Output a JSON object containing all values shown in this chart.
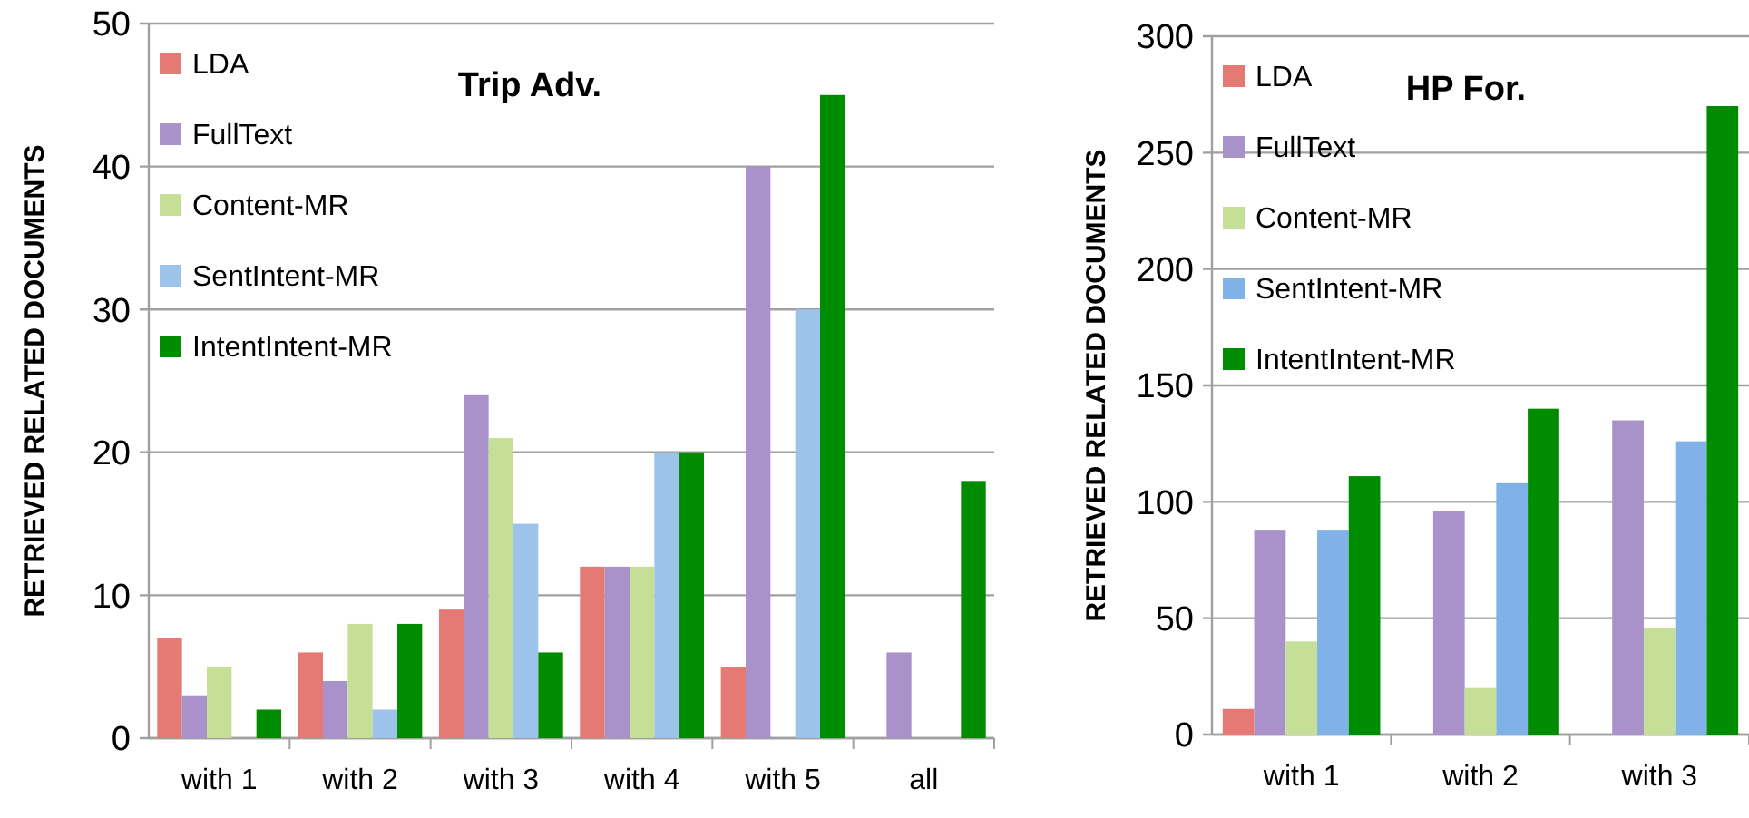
{
  "chart_data": [
    {
      "type": "bar",
      "title": "Trip Adv.",
      "ylabel": "RETRIEVED RELATED DOCUMENTS",
      "categories": [
        "with 1",
        "with 2",
        "with 3",
        "with 4",
        "with 5",
        "all"
      ],
      "series": [
        {
          "name": "LDA",
          "color": "#e57a74",
          "values": [
            7,
            6,
            9,
            12,
            5,
            0
          ]
        },
        {
          "name": "FullText",
          "color": "#a892c9",
          "values": [
            3,
            4,
            24,
            12,
            40,
            6
          ]
        },
        {
          "name": "Content-MR",
          "color": "#c6df96",
          "values": [
            5,
            8,
            21,
            12,
            0,
            0
          ]
        },
        {
          "name": "SentIntent-MR",
          "color": "#9dc3ea",
          "values": [
            0,
            2,
            15,
            20,
            30,
            0
          ]
        },
        {
          "name": "IntentIntent-MR",
          "color": "#008c00",
          "values": [
            2,
            8,
            6,
            20,
            45,
            18
          ]
        }
      ],
      "ylim": [
        0,
        50
      ],
      "yticks": [
        0,
        10,
        20,
        30,
        40,
        50
      ],
      "grid": "y",
      "legend": "top left"
    },
    {
      "type": "bar",
      "title": "HP For.",
      "ylabel": "RETRIEVED RELATED DOCUMENTS",
      "categories": [
        "with 1",
        "with 2",
        "with 3"
      ],
      "series": [
        {
          "name": "LDA",
          "color": "#e57a74",
          "values": [
            11,
            0,
            0
          ]
        },
        {
          "name": "FullText",
          "color": "#a892c9",
          "values": [
            88,
            96,
            135
          ]
        },
        {
          "name": "Content-MR",
          "color": "#c6df96",
          "values": [
            40,
            20,
            46
          ]
        },
        {
          "name": "SentIntent-MR",
          "color": "#80b2e8",
          "values": [
            88,
            108,
            126
          ]
        },
        {
          "name": "IntentIntent-MR",
          "color": "#008c00",
          "values": [
            111,
            140,
            270
          ]
        }
      ],
      "ylim": [
        0,
        300
      ],
      "yticks": [
        0,
        50,
        100,
        150,
        200,
        250,
        300
      ],
      "grid": "y",
      "legend": "top left"
    }
  ]
}
